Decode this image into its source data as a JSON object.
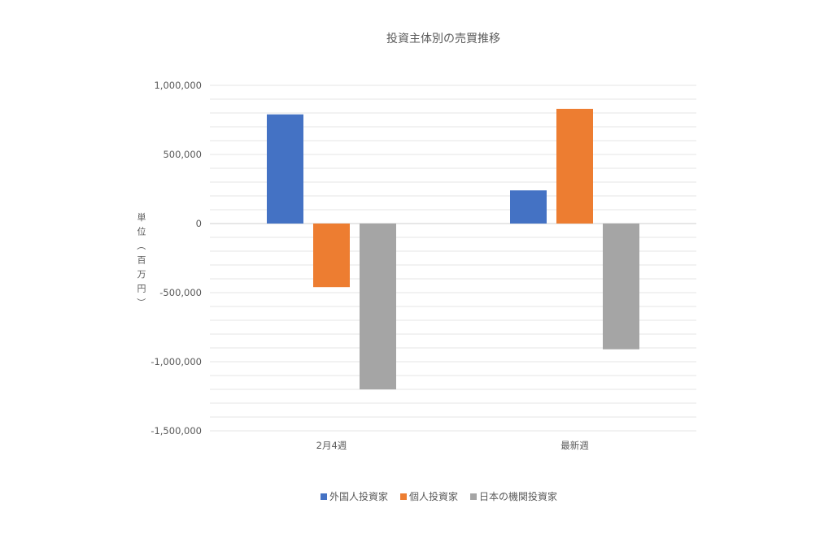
{
  "chart_data": {
    "type": "bar",
    "title": "投資主体別の売買推移",
    "ylabel": "単位（百万円）",
    "xlabel": "",
    "categories": [
      "2月4週",
      "最新週"
    ],
    "series": [
      {
        "name": "外国人投資家",
        "color": "#4472C4",
        "values": [
          790000,
          240000
        ]
      },
      {
        "name": "個人投資家",
        "color": "#ED7D31",
        "values": [
          -460000,
          830000
        ]
      },
      {
        "name": "日本の機関投資家",
        "color": "#A5A5A5",
        "values": [
          -1200000,
          -910000
        ]
      }
    ],
    "ylim": [
      -1500000,
      1000000
    ],
    "yticks": [
      1000000,
      500000,
      0,
      -500000,
      -1000000,
      -1500000
    ],
    "ytick_labels": [
      "1,000,000",
      "500,000",
      "0",
      "-500,000",
      "-1,000,000",
      "-1,500,000"
    ],
    "minor_gridlines": true,
    "legend_position": "bottom"
  }
}
